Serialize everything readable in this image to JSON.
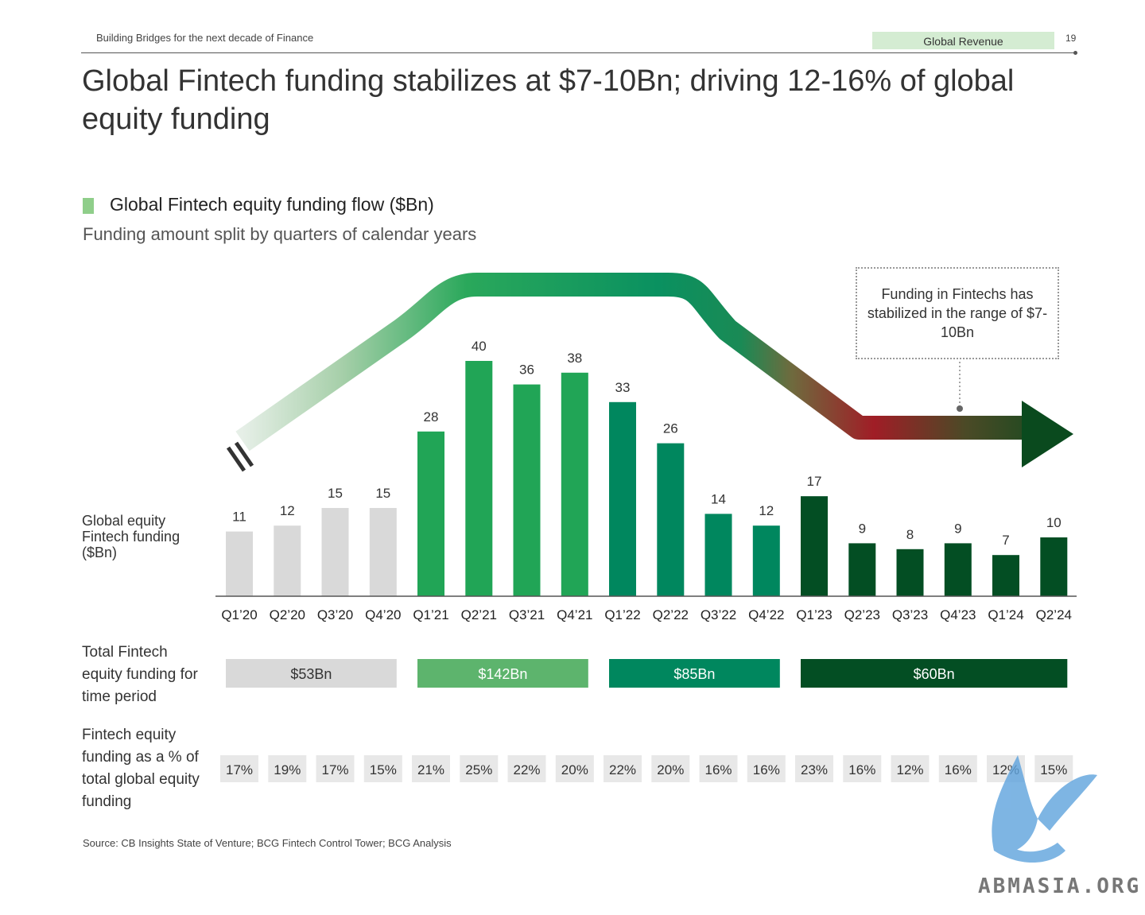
{
  "header": {
    "deck_title": "Building Bridges for the next decade of Finance",
    "section_tag": "Global Revenue",
    "page_number": "19"
  },
  "title": "Global Fintech funding stabilizes at $7-10Bn; driving 12-16% of global equity funding",
  "row_labels": {
    "y_axis": "Global equity Fintech funding ($Bn)",
    "total": "Total Fintech equity funding for time period",
    "pct": "Fintech equity funding as a % of total global equity funding"
  },
  "annotation": "Funding in Fintechs has stabilized in the range of $7-10Bn",
  "source": "Source: CB Insights State of Venture; BCG Fintech Control Tower; BCG Analysis",
  "watermark": "ABMASIA.ORG",
  "colors": {
    "y2020": "#d9d9d9",
    "y2021": "#21a556",
    "y2022": "#00875e",
    "y2023_24": "#034e23",
    "legend_swatch": "#8fce8a",
    "tag_bg": "#d4ecd2"
  },
  "chart_data": {
    "type": "bar",
    "title": "Global Fintech equity funding flow ($Bn)",
    "subtitle": "Funding amount split by quarters of calendar years",
    "ylabel": "Global equity Fintech funding ($Bn)",
    "categories": [
      "Q1’20",
      "Q2’20",
      "Q3’20",
      "Q4’20",
      "Q1’21",
      "Q2’21",
      "Q3’21",
      "Q4’21",
      "Q1’22",
      "Q2’22",
      "Q3’22",
      "Q4’22",
      "Q1’23",
      "Q2’23",
      "Q3’23",
      "Q4’23",
      "Q1’24",
      "Q2’24"
    ],
    "values": [
      11,
      12,
      15,
      15,
      28,
      40,
      36,
      38,
      33,
      26,
      14,
      12,
      17,
      9,
      8,
      9,
      7,
      10
    ],
    "groups": [
      "y2020",
      "y2020",
      "y2020",
      "y2020",
      "y2021",
      "y2021",
      "y2021",
      "y2021",
      "y2022",
      "y2022",
      "y2022",
      "y2022",
      "y2023_24",
      "y2023_24",
      "y2023_24",
      "y2023_24",
      "y2023_24",
      "y2023_24"
    ],
    "ylim": [
      0,
      40
    ],
    "grid": false,
    "legend": "none",
    "period_totals": [
      {
        "label": "$53Bn",
        "from": 0,
        "to": 3,
        "group": "y2020",
        "bg": "#d9d9d9",
        "fg": "#333333"
      },
      {
        "label": "$142Bn",
        "from": 4,
        "to": 7,
        "group": "y2021",
        "bg": "#5db46d",
        "fg": "#ffffff"
      },
      {
        "label": "$85Bn",
        "from": 8,
        "to": 11,
        "group": "y2022",
        "bg": "#00875e",
        "fg": "#ffffff"
      },
      {
        "label": "$60Bn",
        "from": 12,
        "to": 17,
        "group": "y2023_24",
        "bg": "#034e23",
        "fg": "#ffffff"
      }
    ],
    "pct_of_global": [
      "17%",
      "19%",
      "17%",
      "15%",
      "21%",
      "25%",
      "22%",
      "20%",
      "22%",
      "20%",
      "16%",
      "16%",
      "23%",
      "16%",
      "12%",
      "16%",
      "12%",
      "15%"
    ]
  }
}
